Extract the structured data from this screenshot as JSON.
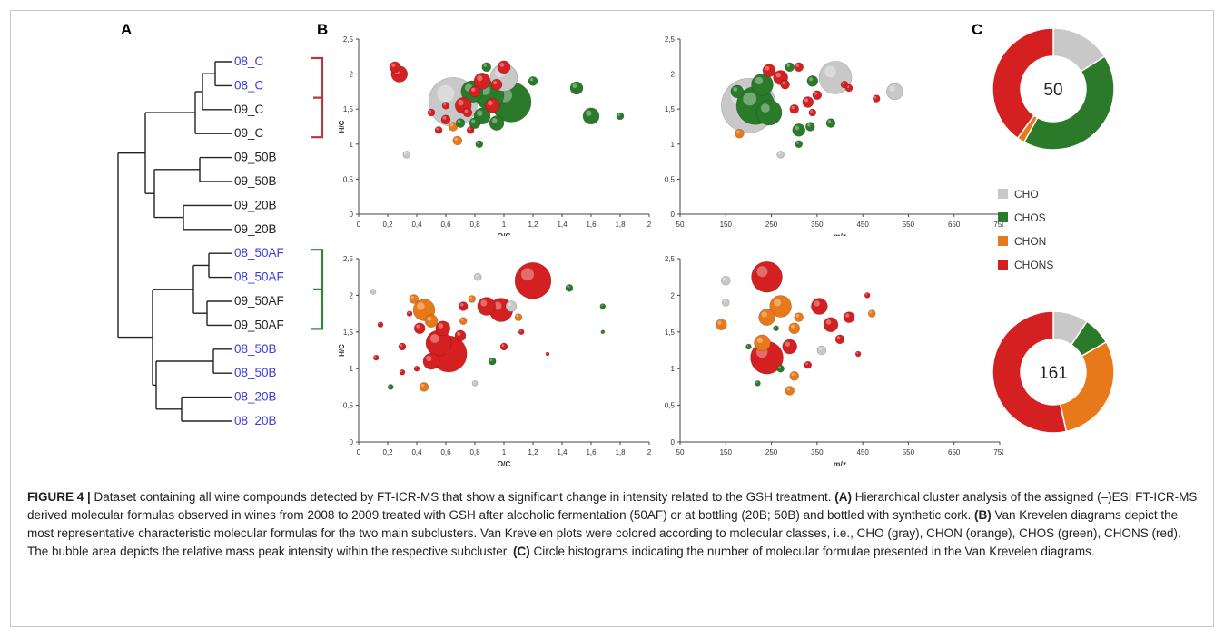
{
  "panel_labels": {
    "a": "A",
    "b": "B",
    "c": "C"
  },
  "dendrogram": {
    "leaves": [
      {
        "label": "08_C",
        "color": "#3a3ae0"
      },
      {
        "label": "08_C",
        "color": "#3a3ae0"
      },
      {
        "label": "09_C",
        "color": "#222222"
      },
      {
        "label": "09_C",
        "color": "#222222"
      },
      {
        "label": "09_50B",
        "color": "#222222"
      },
      {
        "label": "09_50B",
        "color": "#222222"
      },
      {
        "label": "09_20B",
        "color": "#222222"
      },
      {
        "label": "09_20B",
        "color": "#222222"
      },
      {
        "label": "08_50AF",
        "color": "#3a3ae0"
      },
      {
        "label": "08_50AF",
        "color": "#3a3ae0"
      },
      {
        "label": "09_50AF",
        "color": "#222222"
      },
      {
        "label": "09_50AF",
        "color": "#222222"
      },
      {
        "label": "08_50B",
        "color": "#3a3ae0"
      },
      {
        "label": "08_50B",
        "color": "#3a3ae0"
      },
      {
        "label": "08_20B",
        "color": "#3a3ae0"
      },
      {
        "label": "08_20B",
        "color": "#3a3ae0"
      }
    ],
    "bracket_colors": {
      "control": "#b5383f",
      "af": "#2f8a2f"
    }
  },
  "class_colors": {
    "CHO": "#c8c8c8",
    "CHOS": "#2a7a2a",
    "CHON": "#e8791a",
    "CHONS": "#d42020"
  },
  "legend": [
    "CHO",
    "CHOS",
    "CHON",
    "CHONS"
  ],
  "chart_data": [
    {
      "type": "scatter",
      "name": "vk_oc_top",
      "xlabel": "O/C",
      "ylabel": "H/C",
      "xlim": [
        0,
        2
      ],
      "ylim": [
        0,
        2.5
      ],
      "xticks": [
        "0",
        "0,2",
        "0,4",
        "0,6",
        "0,8",
        "1",
        "1,2",
        "1,4",
        "1,6",
        "1,8",
        "2"
      ],
      "yticks": [
        "0",
        "0,5",
        "1",
        "1,5",
        "2",
        "2,5"
      ],
      "points": [
        {
          "x": 0.25,
          "y": 2.1,
          "r": 6,
          "c": "CHONS"
        },
        {
          "x": 0.28,
          "y": 2.0,
          "r": 9,
          "c": "CHONS"
        },
        {
          "x": 0.33,
          "y": 0.85,
          "r": 4,
          "c": "CHO"
        },
        {
          "x": 0.6,
          "y": 1.35,
          "r": 5,
          "c": "CHONS"
        },
        {
          "x": 0.6,
          "y": 1.55,
          "r": 4,
          "c": "CHONS"
        },
        {
          "x": 0.65,
          "y": 1.6,
          "r": 27,
          "c": "CHO"
        },
        {
          "x": 0.75,
          "y": 1.45,
          "r": 5,
          "c": "CHONS"
        },
        {
          "x": 0.72,
          "y": 1.55,
          "r": 9,
          "c": "CHONS"
        },
        {
          "x": 0.8,
          "y": 1.75,
          "r": 6,
          "c": "CHONS"
        },
        {
          "x": 0.85,
          "y": 1.9,
          "r": 9,
          "c": "CHONS"
        },
        {
          "x": 0.78,
          "y": 1.75,
          "r": 12,
          "c": "CHOS"
        },
        {
          "x": 0.88,
          "y": 2.1,
          "r": 5,
          "c": "CHOS"
        },
        {
          "x": 0.9,
          "y": 1.7,
          "r": 16,
          "c": "CHOS"
        },
        {
          "x": 0.95,
          "y": 1.85,
          "r": 6,
          "c": "CHONS"
        },
        {
          "x": 1.0,
          "y": 1.95,
          "r": 15,
          "c": "CHO"
        },
        {
          "x": 1.0,
          "y": 2.1,
          "r": 7,
          "c": "CHONS"
        },
        {
          "x": 1.05,
          "y": 1.6,
          "r": 22,
          "c": "CHOS"
        },
        {
          "x": 0.92,
          "y": 1.55,
          "r": 8,
          "c": "CHONS"
        },
        {
          "x": 0.85,
          "y": 1.4,
          "r": 9,
          "c": "CHOS"
        },
        {
          "x": 0.95,
          "y": 1.3,
          "r": 8,
          "c": "CHOS"
        },
        {
          "x": 0.8,
          "y": 1.3,
          "r": 6,
          "c": "CHOS"
        },
        {
          "x": 0.65,
          "y": 1.25,
          "r": 5,
          "c": "CHON"
        },
        {
          "x": 0.7,
          "y": 1.3,
          "r": 5,
          "c": "CHOS"
        },
        {
          "x": 0.77,
          "y": 1.2,
          "r": 4,
          "c": "CHONS"
        },
        {
          "x": 0.83,
          "y": 1.0,
          "r": 4,
          "c": "CHOS"
        },
        {
          "x": 0.68,
          "y": 1.05,
          "r": 5,
          "c": "CHON"
        },
        {
          "x": 0.55,
          "y": 1.2,
          "r": 4,
          "c": "CHONS"
        },
        {
          "x": 0.5,
          "y": 1.45,
          "r": 4,
          "c": "CHONS"
        },
        {
          "x": 1.2,
          "y": 1.9,
          "r": 5,
          "c": "CHOS"
        },
        {
          "x": 1.5,
          "y": 1.8,
          "r": 7,
          "c": "CHOS"
        },
        {
          "x": 1.6,
          "y": 1.4,
          "r": 9,
          "c": "CHOS"
        },
        {
          "x": 1.8,
          "y": 1.4,
          "r": 4,
          "c": "CHOS"
        }
      ]
    },
    {
      "type": "scatter",
      "name": "vk_mz_top",
      "xlabel": "m/z",
      "ylabel": "",
      "xlim": [
        50,
        750
      ],
      "ylim": [
        0,
        2.5
      ],
      "xticks": [
        "50",
        "150",
        "250",
        "350",
        "450",
        "550",
        "650",
        "750"
      ],
      "yticks": [
        "0",
        "0,5",
        "1",
        "1,5",
        "2",
        "2,5"
      ],
      "points": [
        {
          "x": 200,
          "y": 1.55,
          "r": 30,
          "c": "CHO"
        },
        {
          "x": 215,
          "y": 1.55,
          "r": 21,
          "c": "CHOS"
        },
        {
          "x": 245,
          "y": 1.45,
          "r": 14,
          "c": "CHOS"
        },
        {
          "x": 230,
          "y": 1.85,
          "r": 12,
          "c": "CHOS"
        },
        {
          "x": 175,
          "y": 1.75,
          "r": 7,
          "c": "CHOS"
        },
        {
          "x": 245,
          "y": 2.05,
          "r": 7,
          "c": "CHONS"
        },
        {
          "x": 270,
          "y": 1.95,
          "r": 8,
          "c": "CHONS"
        },
        {
          "x": 280,
          "y": 1.85,
          "r": 5,
          "c": "CHONS"
        },
        {
          "x": 290,
          "y": 2.1,
          "r": 5,
          "c": "CHOS"
        },
        {
          "x": 310,
          "y": 2.1,
          "r": 5,
          "c": "CHONS"
        },
        {
          "x": 390,
          "y": 1.95,
          "r": 18,
          "c": "CHO"
        },
        {
          "x": 340,
          "y": 1.9,
          "r": 6,
          "c": "CHOS"
        },
        {
          "x": 330,
          "y": 1.6,
          "r": 6,
          "c": "CHONS"
        },
        {
          "x": 350,
          "y": 1.7,
          "r": 5,
          "c": "CHONS"
        },
        {
          "x": 340,
          "y": 1.45,
          "r": 4,
          "c": "CHONS"
        },
        {
          "x": 300,
          "y": 1.5,
          "r": 5,
          "c": "CHONS"
        },
        {
          "x": 310,
          "y": 1.2,
          "r": 7,
          "c": "CHOS"
        },
        {
          "x": 335,
          "y": 1.25,
          "r": 5,
          "c": "CHOS"
        },
        {
          "x": 310,
          "y": 1.0,
          "r": 4,
          "c": "CHOS"
        },
        {
          "x": 270,
          "y": 0.85,
          "r": 4,
          "c": "CHO"
        },
        {
          "x": 180,
          "y": 1.15,
          "r": 5,
          "c": "CHON"
        },
        {
          "x": 380,
          "y": 1.3,
          "r": 5,
          "c": "CHOS"
        },
        {
          "x": 420,
          "y": 1.8,
          "r": 4,
          "c": "CHONS"
        },
        {
          "x": 480,
          "y": 1.65,
          "r": 4,
          "c": "CHONS"
        },
        {
          "x": 520,
          "y": 1.75,
          "r": 9,
          "c": "CHO"
        },
        {
          "x": 410,
          "y": 1.85,
          "r": 4,
          "c": "CHONS"
        }
      ]
    },
    {
      "type": "scatter",
      "name": "vk_oc_bottom",
      "xlabel": "O/C",
      "ylabel": "H/C",
      "xlim": [
        0,
        2
      ],
      "ylim": [
        0,
        2.5
      ],
      "xticks": [
        "0",
        "0,2",
        "0,4",
        "0,6",
        "0,8",
        "1",
        "1,2",
        "1,4",
        "1,6",
        "1,8",
        "2"
      ],
      "yticks": [
        "0",
        "0,5",
        "1",
        "1,5",
        "2",
        "2,5"
      ],
      "points": [
        {
          "x": 0.1,
          "y": 2.05,
          "r": 3,
          "c": "CHO"
        },
        {
          "x": 0.12,
          "y": 1.15,
          "r": 3,
          "c": "CHONS"
        },
        {
          "x": 0.15,
          "y": 1.6,
          "r": 3,
          "c": "CHONS"
        },
        {
          "x": 0.22,
          "y": 0.75,
          "r": 3,
          "c": "CHOS"
        },
        {
          "x": 0.3,
          "y": 1.3,
          "r": 4,
          "c": "CHONS"
        },
        {
          "x": 0.38,
          "y": 1.95,
          "r": 5,
          "c": "CHON"
        },
        {
          "x": 0.45,
          "y": 1.8,
          "r": 12,
          "c": "CHON"
        },
        {
          "x": 0.42,
          "y": 1.55,
          "r": 6,
          "c": "CHONS"
        },
        {
          "x": 0.5,
          "y": 1.65,
          "r": 7,
          "c": "CHON"
        },
        {
          "x": 0.55,
          "y": 1.35,
          "r": 14,
          "c": "CHONS"
        },
        {
          "x": 0.62,
          "y": 1.2,
          "r": 20,
          "c": "CHONS"
        },
        {
          "x": 0.5,
          "y": 1.1,
          "r": 9,
          "c": "CHONS"
        },
        {
          "x": 0.58,
          "y": 1.55,
          "r": 8,
          "c": "CHONS"
        },
        {
          "x": 0.7,
          "y": 1.45,
          "r": 6,
          "c": "CHONS"
        },
        {
          "x": 0.72,
          "y": 1.85,
          "r": 5,
          "c": "CHONS"
        },
        {
          "x": 0.78,
          "y": 1.95,
          "r": 4,
          "c": "CHON"
        },
        {
          "x": 0.82,
          "y": 2.25,
          "r": 4,
          "c": "CHO"
        },
        {
          "x": 0.88,
          "y": 1.85,
          "r": 10,
          "c": "CHONS"
        },
        {
          "x": 0.98,
          "y": 1.8,
          "r": 13,
          "c": "CHONS"
        },
        {
          "x": 1.05,
          "y": 1.85,
          "r": 6,
          "c": "CHO"
        },
        {
          "x": 1.2,
          "y": 2.2,
          "r": 20,
          "c": "CHONS"
        },
        {
          "x": 1.1,
          "y": 1.7,
          "r": 4,
          "c": "CHON"
        },
        {
          "x": 1.0,
          "y": 1.3,
          "r": 4,
          "c": "CHONS"
        },
        {
          "x": 0.92,
          "y": 1.1,
          "r": 4,
          "c": "CHOS"
        },
        {
          "x": 0.8,
          "y": 0.8,
          "r": 3,
          "c": "CHO"
        },
        {
          "x": 0.45,
          "y": 0.75,
          "r": 5,
          "c": "CHON"
        },
        {
          "x": 0.3,
          "y": 0.95,
          "r": 3,
          "c": "CHONS"
        },
        {
          "x": 0.4,
          "y": 1.0,
          "r": 3,
          "c": "CHONS"
        },
        {
          "x": 1.45,
          "y": 2.1,
          "r": 4,
          "c": "CHOS"
        },
        {
          "x": 1.68,
          "y": 1.85,
          "r": 3,
          "c": "CHOS"
        },
        {
          "x": 1.68,
          "y": 1.5,
          "r": 2,
          "c": "CHOS"
        },
        {
          "x": 1.3,
          "y": 1.2,
          "r": 2,
          "c": "CHONS"
        },
        {
          "x": 0.72,
          "y": 1.65,
          "r": 4,
          "c": "CHON"
        },
        {
          "x": 0.35,
          "y": 1.75,
          "r": 3,
          "c": "CHONS"
        },
        {
          "x": 1.12,
          "y": 1.5,
          "r": 3,
          "c": "CHONS"
        }
      ]
    },
    {
      "type": "scatter",
      "name": "vk_mz_bottom",
      "xlabel": "m/z",
      "ylabel": "",
      "xlim": [
        50,
        750
      ],
      "ylim": [
        0,
        2.5
      ],
      "xticks": [
        "50",
        "150",
        "250",
        "350",
        "450",
        "550",
        "650",
        "750"
      ],
      "yticks": [
        "0",
        "0,5",
        "1",
        "1,5",
        "2",
        "2,5"
      ],
      "points": [
        {
          "x": 140,
          "y": 1.6,
          "r": 6,
          "c": "CHON"
        },
        {
          "x": 150,
          "y": 2.2,
          "r": 5,
          "c": "CHO"
        },
        {
          "x": 150,
          "y": 1.9,
          "r": 4,
          "c": "CHO"
        },
        {
          "x": 240,
          "y": 2.25,
          "r": 17,
          "c": "CHONS"
        },
        {
          "x": 270,
          "y": 1.85,
          "r": 12,
          "c": "CHON"
        },
        {
          "x": 240,
          "y": 1.7,
          "r": 9,
          "c": "CHON"
        },
        {
          "x": 230,
          "y": 1.35,
          "r": 9,
          "c": "CHON"
        },
        {
          "x": 240,
          "y": 1.15,
          "r": 18,
          "c": "CHONS"
        },
        {
          "x": 290,
          "y": 1.3,
          "r": 8,
          "c": "CHONS"
        },
        {
          "x": 300,
          "y": 1.55,
          "r": 6,
          "c": "CHON"
        },
        {
          "x": 310,
          "y": 1.7,
          "r": 5,
          "c": "CHON"
        },
        {
          "x": 355,
          "y": 1.85,
          "r": 9,
          "c": "CHONS"
        },
        {
          "x": 380,
          "y": 1.6,
          "r": 8,
          "c": "CHONS"
        },
        {
          "x": 400,
          "y": 1.4,
          "r": 5,
          "c": "CHONS"
        },
        {
          "x": 420,
          "y": 1.7,
          "r": 6,
          "c": "CHONS"
        },
        {
          "x": 360,
          "y": 1.25,
          "r": 5,
          "c": "CHO"
        },
        {
          "x": 300,
          "y": 0.9,
          "r": 5,
          "c": "CHON"
        },
        {
          "x": 290,
          "y": 0.7,
          "r": 5,
          "c": "CHON"
        },
        {
          "x": 270,
          "y": 1.0,
          "r": 4,
          "c": "CHOS"
        },
        {
          "x": 220,
          "y": 0.8,
          "r": 3,
          "c": "CHOS"
        },
        {
          "x": 330,
          "y": 1.05,
          "r": 4,
          "c": "CHONS"
        },
        {
          "x": 470,
          "y": 1.75,
          "r": 4,
          "c": "CHON"
        },
        {
          "x": 460,
          "y": 2.0,
          "r": 3,
          "c": "CHONS"
        },
        {
          "x": 440,
          "y": 1.2,
          "r": 3,
          "c": "CHONS"
        },
        {
          "x": 200,
          "y": 1.3,
          "r": 3,
          "c": "CHOS"
        },
        {
          "x": 260,
          "y": 1.55,
          "r": 3,
          "c": "CHOS"
        }
      ]
    },
    {
      "type": "pie",
      "name": "donut_top",
      "center_label": "50",
      "slices": [
        {
          "label": "CHO",
          "value": 8
        },
        {
          "label": "CHOS",
          "value": 21
        },
        {
          "label": "CHON",
          "value": 1
        },
        {
          "label": "CHONS",
          "value": 20
        }
      ]
    },
    {
      "type": "pie",
      "name": "donut_bottom",
      "center_label": "161",
      "slices": [
        {
          "label": "CHO",
          "value": 15
        },
        {
          "label": "CHOS",
          "value": 12
        },
        {
          "label": "CHON",
          "value": 48
        },
        {
          "label": "CHONS",
          "value": 86
        }
      ]
    }
  ],
  "caption": {
    "fig": "FIGURE 4 |",
    "intro": " Dataset containing all wine compounds detected by FT-ICR-MS that show a significant change in intensity related to the GSH treatment. ",
    "a_tag": "(A)",
    "a_text": " Hierarchical cluster analysis of the assigned (–)ESI FT-ICR-MS derived molecular formulas observed in wines from 2008 to 2009 treated with GSH after alcoholic fermentation (50AF) or at bottling (20B; 50B) and bottled with synthetic cork. ",
    "b_tag": "(B)",
    "b_text": " Van Krevelen diagrams depict the most representative characteristic molecular formulas for the two main subclusters. Van Krevelen plots were colored according to molecular classes, i.e., CHO (gray), CHON (orange), CHOS (green), CHONS (red). The bubble area depicts the relative mass peak intensity within the respective subcluster. ",
    "c_tag": "(C)",
    "c_text": " Circle histograms indicating the number of molecular formulae presented in the Van Krevelen diagrams."
  }
}
